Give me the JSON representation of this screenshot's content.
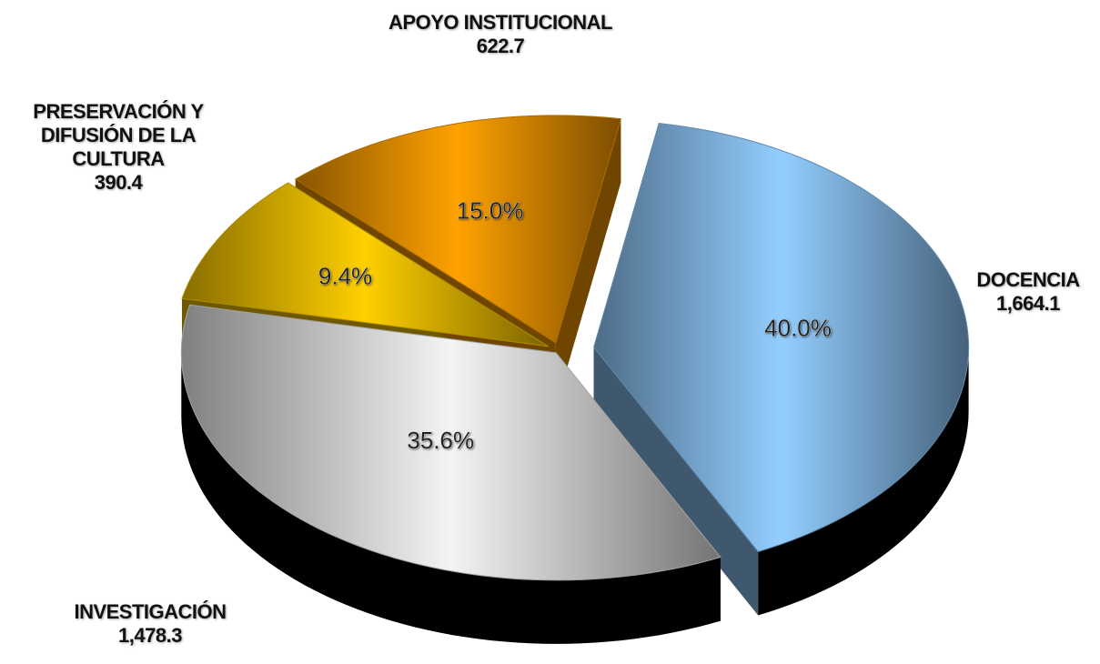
{
  "chart_data": {
    "type": "pie",
    "categories": [
      "DOCENCIA",
      "INVESTIGACIÓN",
      "PRESERVACIÓN Y DIFUSIÓN DE LA CULTURA",
      "APOYO INSTITUCIONAL"
    ],
    "values": [
      40.0,
      35.6,
      9.4,
      15.0
    ],
    "value_labels": [
      "40.0%",
      "35.6%",
      "9.4%",
      "15.0%"
    ],
    "amounts": [
      1664.1,
      1478.3,
      390.4,
      622.7
    ],
    "amount_labels": [
      "1,664.1",
      "1,478.3",
      "390.4",
      "622.7"
    ],
    "colors": [
      "#8cc4f5",
      "#e8e8e8",
      "#f7c600",
      "#f79a00"
    ]
  }
}
